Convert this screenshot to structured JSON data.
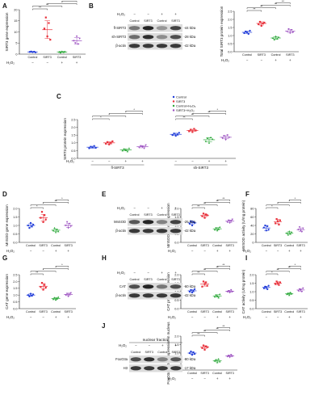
{
  "colors": {
    "control": "#1f3bd9",
    "sirt3": "#e8303a",
    "control_h2o2": "#2aa838",
    "sirt3_h2o2": "#9b4fc0",
    "mean_bar": "#555555",
    "sig_bar": "#222222",
    "band": "#1a1a1a"
  },
  "common": {
    "h2o2_label": "H₂O₂",
    "signs": [
      "−",
      "−",
      "+",
      "+"
    ],
    "groups": [
      "Control",
      "SIRT3",
      "Control",
      "SIRT3"
    ]
  },
  "chart_data": [
    {
      "panel": "A",
      "type": "scatter",
      "ylabel": "SIRT3 gene expression",
      "ylim": [
        0,
        20
      ],
      "yticks": [
        "0",
        "5",
        "10",
        "15",
        "20"
      ],
      "categories": [
        "Control",
        "SIRT3",
        "Control",
        "SIRT3"
      ],
      "values": [
        [
          1.0,
          1.2,
          0.9,
          1.1,
          0.8
        ],
        [
          11.5,
          16.5,
          8.0,
          14.0,
          6.5
        ],
        [
          1.0,
          0.7,
          1.2,
          0.9,
          1.1
        ],
        [
          6.0,
          5.0,
          8.0,
          4.5,
          7.0
        ]
      ],
      "means": [
        1.0,
        11.0,
        1.0,
        6.0
      ],
      "sds": [
        0.2,
        4.0,
        0.2,
        1.5
      ],
      "sig": [
        {
          "a": 0,
          "b": 1,
          "t": "**"
        },
        {
          "a": 0,
          "b": 2,
          "t": "**"
        },
        {
          "a": 1,
          "b": 3,
          "t": "*"
        },
        {
          "a": 2,
          "b": 3,
          "t": "*"
        }
      ]
    },
    {
      "panel": "B",
      "type": "scatter",
      "ylabel": "Total SIRT3 protein expression",
      "ylim": [
        0,
        2.5
      ],
      "yticks": [
        "0.0",
        "0.5",
        "1.0",
        "1.5",
        "2.0",
        "2.5"
      ],
      "categories": [
        "Control",
        "SIRT3",
        "Control",
        "SIRT3"
      ],
      "values": [
        [
          1.15,
          1.25,
          1.2,
          1.1,
          1.3
        ],
        [
          1.7,
          1.85,
          1.6,
          1.75,
          1.8
        ],
        [
          0.85,
          0.75,
          0.95,
          0.8,
          0.9
        ],
        [
          1.25,
          1.4,
          1.15,
          1.35,
          1.2
        ]
      ],
      "means": [
        1.2,
        1.75,
        0.85,
        1.27
      ],
      "sds": [
        0.07,
        0.1,
        0.08,
        0.1
      ],
      "sig": [
        {
          "a": 0,
          "b": 1,
          "t": "**"
        },
        {
          "a": 0,
          "b": 2,
          "t": "**"
        },
        {
          "a": 1,
          "b": 3,
          "t": "**"
        },
        {
          "a": 2,
          "b": 3,
          "t": "**"
        }
      ]
    },
    {
      "panel": "C",
      "type": "scatter",
      "ylabel": "SIRT3 protein expression",
      "ylim": [
        0,
        2.5
      ],
      "yticks": [
        "0.0",
        "0.5",
        "1.0",
        "1.5",
        "2.0",
        "2.5"
      ],
      "legend": [
        "Control",
        "SIRT3",
        "Control+H₂O₂",
        "SIRT3+H₂O₂"
      ],
      "group_labels": [
        "fl-SIRT3",
        "sh-SIRT3"
      ],
      "groups": [
        {
          "values": [
            [
              0.65,
              0.75,
              0.7,
              0.8,
              0.68
            ],
            [
              0.95,
              1.05,
              0.9,
              1.0,
              1.1
            ],
            [
              0.5,
              0.6,
              0.55,
              0.45,
              0.65
            ],
            [
              0.7,
              0.8,
              0.75,
              0.65,
              0.85
            ]
          ],
          "means": [
            0.72,
            1.0,
            0.55,
            0.75
          ],
          "sds": [
            0.06,
            0.07,
            0.07,
            0.07
          ]
        },
        {
          "values": [
            [
              1.5,
              1.6,
              1.45,
              1.55,
              1.65
            ],
            [
              1.75,
              1.85,
              1.7,
              1.9,
              1.8
            ],
            [
              1.1,
              1.3,
              1.0,
              1.35,
              1.25
            ],
            [
              1.3,
              1.45,
              1.2,
              1.5,
              1.35
            ]
          ],
          "means": [
            1.55,
            1.8,
            1.2,
            1.36
          ],
          "sds": [
            0.07,
            0.07,
            0.14,
            0.1
          ]
        }
      ],
      "sig": [
        {
          "a": 0,
          "b": 1,
          "t": "*"
        },
        {
          "a": 0,
          "b": 2,
          "t": "*"
        },
        {
          "a": 1,
          "b": 3,
          "t": "*"
        },
        {
          "a": 2,
          "b": 3,
          "t": "*"
        },
        {
          "a": 4,
          "b": 5,
          "t": "**"
        },
        {
          "a": 4,
          "b": 6,
          "t": "**"
        },
        {
          "a": 5,
          "b": 7,
          "t": "**"
        },
        {
          "a": 6,
          "b": 7,
          "t": "*"
        }
      ]
    },
    {
      "panel": "D",
      "type": "scatter",
      "ylabel": "MnSOD gene expression",
      "ylim": [
        0,
        2.0
      ],
      "yticks": [
        "0.0",
        "0.5",
        "1.0",
        "1.5",
        "2.0"
      ],
      "categories": [
        "Control",
        "SIRT3",
        "Control",
        "SIRT3"
      ],
      "values": [
        [
          1.0,
          0.85,
          1.15,
          0.95,
          1.05
        ],
        [
          1.45,
          1.8,
          1.2,
          1.6,
          1.35
        ],
        [
          0.7,
          0.85,
          0.6,
          0.75,
          0.65
        ],
        [
          1.0,
          1.2,
          0.85,
          1.1,
          0.95
        ]
      ],
      "means": [
        1.0,
        1.45,
        0.72,
        1.0
      ],
      "sds": [
        0.1,
        0.2,
        0.08,
        0.12
      ],
      "sig": [
        {
          "a": 0,
          "b": 1,
          "t": "*"
        },
        {
          "a": 0,
          "b": 2,
          "t": "*"
        },
        {
          "a": 1,
          "b": 3,
          "t": "**"
        },
        {
          "a": 2,
          "b": 3,
          "t": "*"
        }
      ]
    },
    {
      "panel": "E",
      "type": "scatter",
      "ylabel": "MnSOD protein expression",
      "ylim": [
        0,
        2.0
      ],
      "yticks": [
        "0.0",
        "0.5",
        "1.0",
        "1.5",
        "2.0"
      ],
      "categories": [
        "Control",
        "SIRT3",
        "Control",
        "SIRT3"
      ],
      "values": [
        [
          1.1,
          1.25,
          1.0,
          1.2,
          1.15
        ],
        [
          1.55,
          1.7,
          1.45,
          1.65,
          1.6
        ],
        [
          0.75,
          0.85,
          0.7,
          0.8,
          0.9
        ],
        [
          1.2,
          1.3,
          1.15,
          1.25,
          1.35
        ]
      ],
      "means": [
        1.15,
        1.58,
        0.8,
        1.25
      ],
      "sds": [
        0.1,
        0.09,
        0.07,
        0.07
      ],
      "sig": [
        {
          "a": 0,
          "b": 1,
          "t": "**"
        },
        {
          "a": 0,
          "b": 2,
          "t": "**"
        },
        {
          "a": 1,
          "b": 3,
          "t": "**"
        },
        {
          "a": 2,
          "b": 3,
          "t": "**"
        }
      ]
    },
    {
      "panel": "F",
      "type": "scatter",
      "ylabel": "MnSOD activity (U/mg protein)",
      "ylim": [
        0,
        80
      ],
      "yticks": [
        "0",
        "20",
        "40",
        "60",
        "80"
      ],
      "categories": [
        "Control",
        "SIRT3",
        "Control",
        "SIRT3"
      ],
      "values": [
        [
          35,
          40,
          28,
          38,
          30
        ],
        [
          45,
          55,
          50,
          42,
          52
        ],
        [
          22,
          18,
          26,
          20,
          24
        ],
        [
          30,
          36,
          28,
          25,
          33
        ]
      ],
      "means": [
        34,
        49,
        22,
        30
      ],
      "sds": [
        6,
        5,
        3,
        4
      ],
      "sig": [
        {
          "a": 0,
          "b": 1,
          "t": "*"
        },
        {
          "a": 0,
          "b": 2,
          "t": "*"
        },
        {
          "a": 1,
          "b": 3,
          "t": "*"
        },
        {
          "a": 2,
          "b": 3,
          "t": "*"
        }
      ]
    },
    {
      "panel": "G",
      "type": "scatter",
      "ylabel": "CAT gene expression",
      "ylim": [
        0,
        2.5
      ],
      "yticks": [
        "0.0",
        "0.5",
        "1.0",
        "1.5",
        "2.0",
        "2.5"
      ],
      "categories": [
        "Control",
        "SIRT3",
        "Control",
        "SIRT3"
      ],
      "values": [
        [
          1.0,
          0.9,
          1.1,
          0.95,
          1.05
        ],
        [
          1.6,
          1.9,
          1.4,
          1.75,
          1.55
        ],
        [
          0.7,
          0.8,
          0.65,
          0.75,
          0.85
        ],
        [
          1.0,
          1.1,
          0.9,
          1.05,
          1.15
        ]
      ],
      "means": [
        1.0,
        1.65,
        0.75,
        1.05
      ],
      "sds": [
        0.08,
        0.2,
        0.07,
        0.09
      ],
      "sig": [
        {
          "a": 0,
          "b": 1,
          "t": "**"
        },
        {
          "a": 0,
          "b": 2,
          "t": "*"
        },
        {
          "a": 1,
          "b": 3,
          "t": "*"
        },
        {
          "a": 2,
          "b": 3,
          "t": "*"
        }
      ]
    },
    {
      "panel": "H",
      "type": "scatter",
      "ylabel": "CAT protein expression",
      "ylim": [
        0,
        2.0
      ],
      "yticks": [
        "0.0",
        "0.5",
        "1.0",
        "1.5",
        "2.0"
      ],
      "categories": [
        "Control",
        "SIRT3",
        "Control",
        "SIRT3"
      ],
      "values": [
        [
          1.0,
          1.1,
          0.95,
          1.05,
          1.15
        ],
        [
          1.3,
          1.6,
          1.45,
          1.55,
          1.35
        ],
        [
          0.7,
          0.8,
          0.75,
          0.65,
          0.85
        ],
        [
          1.0,
          1.05,
          0.95,
          1.1,
          1.0
        ]
      ],
      "means": [
        1.05,
        1.45,
        0.75,
        1.02
      ],
      "sds": [
        0.07,
        0.12,
        0.07,
        0.06
      ],
      "sig": [
        {
          "a": 0,
          "b": 1,
          "t": "**"
        },
        {
          "a": 0,
          "b": 2,
          "t": "**"
        },
        {
          "a": 1,
          "b": 3,
          "t": "**"
        },
        {
          "a": 2,
          "b": 3,
          "t": "**"
        }
      ]
    },
    {
      "panel": "I",
      "type": "scatter",
      "ylabel": "CAT activity (U/mg protein)",
      "ylim": [
        0,
        2.0
      ],
      "yticks": [
        "0.0",
        "0.5",
        "1.0",
        "1.5",
        "2.0"
      ],
      "categories": [
        "Control",
        "SIRT3",
        "Control",
        "SIRT3"
      ],
      "values": [
        [
          1.2,
          1.3,
          1.25,
          1.15,
          1.35
        ],
        [
          1.45,
          1.6,
          1.5,
          1.4,
          1.55
        ],
        [
          0.85,
          0.9,
          0.8,
          0.95,
          0.88
        ],
        [
          1.05,
          1.15,
          1.1,
          1.0,
          1.2
        ]
      ],
      "means": [
        1.25,
        1.5,
        0.88,
        1.1
      ],
      "sds": [
        0.07,
        0.08,
        0.05,
        0.07
      ],
      "sig": [
        {
          "a": 0,
          "b": 1,
          "t": "*"
        },
        {
          "a": 0,
          "b": 2,
          "t": "**"
        },
        {
          "a": 1,
          "b": 3,
          "t": "**"
        },
        {
          "a": 2,
          "b": 3,
          "t": "*"
        }
      ]
    },
    {
      "panel": "J",
      "type": "scatter",
      "ylabel": "FoxO3a protein expression in nucleus",
      "ylim": [
        0,
        2.0
      ],
      "yticks": [
        "0.0",
        "0.5",
        "1.0",
        "1.5",
        "2.0"
      ],
      "categories": [
        "Control",
        "SIRT3",
        "Control",
        "SIRT3"
      ],
      "values": [
        [
          1.0,
          1.1,
          0.9,
          1.05,
          0.95
        ],
        [
          1.3,
          1.45,
          1.2,
          1.4,
          1.35
        ],
        [
          0.55,
          0.6,
          0.45,
          0.65,
          0.5
        ],
        [
          0.8,
          0.85,
          0.75,
          0.9,
          0.82
        ]
      ],
      "means": [
        1.0,
        1.35,
        0.55,
        0.83
      ],
      "sds": [
        0.07,
        0.09,
        0.07,
        0.05
      ],
      "sig": [
        {
          "a": 0,
          "b": 1,
          "t": "**"
        },
        {
          "a": 0,
          "b": 2,
          "t": "**"
        },
        {
          "a": 1,
          "b": 3,
          "t": "**"
        },
        {
          "a": 2,
          "b": 3,
          "t": "**"
        }
      ]
    }
  ],
  "blots": [
    {
      "panel": "B",
      "rows": [
        {
          "label": "fl-SIRT3",
          "kda": "-44 kDa",
          "intensity": [
            0.55,
            0.95,
            0.4,
            0.8
          ]
        },
        {
          "label": "sh-SIRT3",
          "kda": "-28 kDa",
          "intensity": [
            0.6,
            0.9,
            0.45,
            0.75
          ]
        },
        {
          "label": "β-actin",
          "kda": "-42 kDa",
          "intensity": [
            0.85,
            0.85,
            0.85,
            0.85
          ]
        }
      ]
    },
    {
      "panel": "E",
      "rows": [
        {
          "label": "MnSOD",
          "kda": "-25 kDa",
          "intensity": [
            0.7,
            0.95,
            0.5,
            0.8
          ]
        },
        {
          "label": "β-actin",
          "kda": "-42 kDa",
          "intensity": [
            0.85,
            0.85,
            0.85,
            0.85
          ]
        }
      ]
    },
    {
      "panel": "H",
      "rows": [
        {
          "label": "CAT",
          "kda": "-60 kDa",
          "intensity": [
            0.75,
            0.95,
            0.55,
            0.75
          ]
        },
        {
          "label": "β-actin",
          "kda": "-42 kDa",
          "intensity": [
            0.85,
            0.85,
            0.85,
            0.85
          ]
        }
      ]
    },
    {
      "panel": "J",
      "title": "nuclear fraction",
      "rows": [
        {
          "label": "FoxO3a",
          "kda": "-80 kDa",
          "intensity": [
            0.75,
            0.9,
            0.5,
            0.7
          ]
        },
        {
          "label": "H3",
          "kda": "-17 kDa",
          "intensity": [
            0.85,
            0.85,
            0.85,
            0.85
          ]
        }
      ]
    }
  ]
}
